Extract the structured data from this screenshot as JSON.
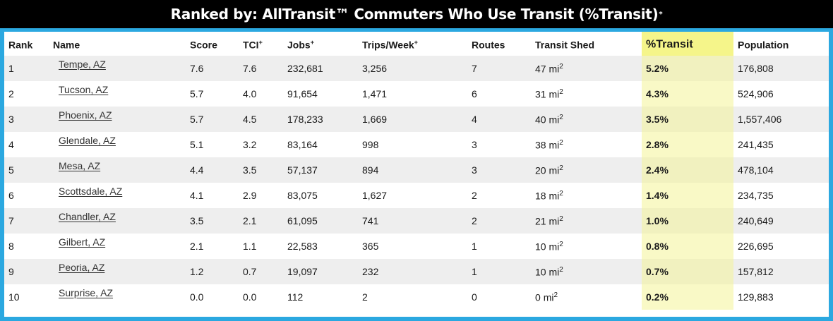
{
  "title": {
    "text": "Ranked by: AllTransit™ Commuters Who Use Transit (%Transit)",
    "superscript": "*"
  },
  "columns": [
    {
      "label": "Rank",
      "sup": ""
    },
    {
      "label": "Name",
      "sup": ""
    },
    {
      "label": "Score",
      "sup": ""
    },
    {
      "label": "TCI",
      "sup": "+"
    },
    {
      "label": "Jobs",
      "sup": "+"
    },
    {
      "label": "Trips/Week",
      "sup": "+"
    },
    {
      "label": "Routes",
      "sup": ""
    },
    {
      "label": "Transit Shed",
      "sup": ""
    },
    {
      "label": "%Transit",
      "sup": ""
    },
    {
      "label": "Population",
      "sup": ""
    }
  ],
  "shed_unit": "mi",
  "shed_unit_sup": "2",
  "rows": [
    {
      "rank": "1",
      "name": "Tempe, AZ",
      "score": "7.6",
      "tci": "7.6",
      "jobs": "232,681",
      "trips": "3,256",
      "routes": "7",
      "shed": "47",
      "transit": "5.2%",
      "population": "176,808"
    },
    {
      "rank": "2",
      "name": "Tucson, AZ",
      "score": "5.7",
      "tci": "4.0",
      "jobs": "91,654",
      "trips": "1,471",
      "routes": "6",
      "shed": "31",
      "transit": "4.3%",
      "population": "524,906"
    },
    {
      "rank": "3",
      "name": "Phoenix, AZ",
      "score": "5.7",
      "tci": "4.5",
      "jobs": "178,233",
      "trips": "1,669",
      "routes": "4",
      "shed": "40",
      "transit": "3.5%",
      "population": "1,557,406"
    },
    {
      "rank": "4",
      "name": "Glendale, AZ",
      "score": "5.1",
      "tci": "3.2",
      "jobs": "83,164",
      "trips": "998",
      "routes": "3",
      "shed": "38",
      "transit": "2.8%",
      "population": "241,435"
    },
    {
      "rank": "5",
      "name": "Mesa, AZ",
      "score": "4.4",
      "tci": "3.5",
      "jobs": "57,137",
      "trips": "894",
      "routes": "3",
      "shed": "20",
      "transit": "2.4%",
      "population": "478,104"
    },
    {
      "rank": "6",
      "name": "Scottsdale, AZ",
      "score": "4.1",
      "tci": "2.9",
      "jobs": "83,075",
      "trips": "1,627",
      "routes": "2",
      "shed": "18",
      "transit": "1.4%",
      "population": "234,735"
    },
    {
      "rank": "7",
      "name": "Chandler, AZ",
      "score": "3.5",
      "tci": "2.1",
      "jobs": "61,095",
      "trips": "741",
      "routes": "2",
      "shed": "21",
      "transit": "1.0%",
      "population": "240,649"
    },
    {
      "rank": "8",
      "name": "Gilbert, AZ",
      "score": "2.1",
      "tci": "1.1",
      "jobs": "22,583",
      "trips": "365",
      "routes": "1",
      "shed": "10",
      "transit": "0.8%",
      "population": "226,695"
    },
    {
      "rank": "9",
      "name": "Peoria, AZ",
      "score": "1.2",
      "tci": "0.7",
      "jobs": "19,097",
      "trips": "232",
      "routes": "1",
      "shed": "10",
      "transit": "0.7%",
      "population": "157,812"
    },
    {
      "rank": "10",
      "name": "Surprise, AZ",
      "score": "0.0",
      "tci": "0.0",
      "jobs": "112",
      "trips": "2",
      "routes": "0",
      "shed": "0",
      "transit": "0.2%",
      "population": "129,883"
    }
  ],
  "colors": {
    "title_bg": "#000000",
    "frame_border": "#2ba8e0",
    "highlight_header": "#f5f58a",
    "highlight_cell": "#f1f1bf",
    "row_stripe": "#eeeeee"
  }
}
